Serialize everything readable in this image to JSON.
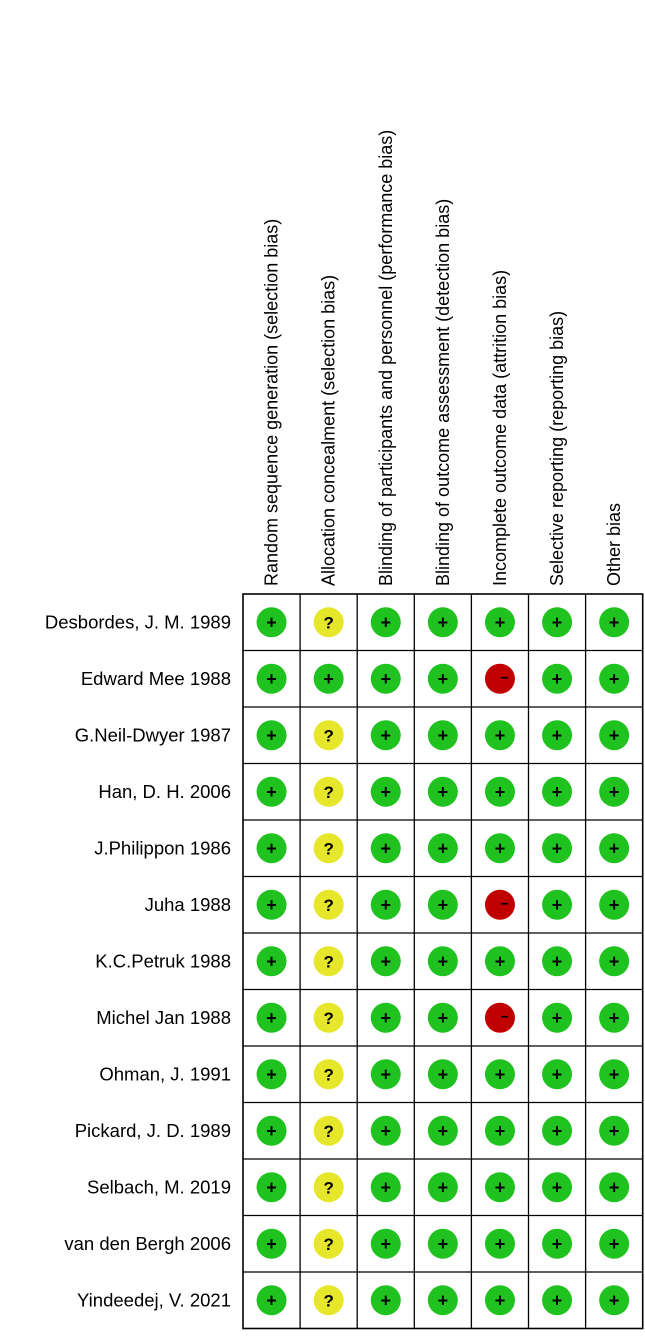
{
  "columns": [
    "Random sequence generation (selection bias)",
    "Allocation concealment (selection bias)",
    "Blinding of participants and personnel (performance bias)",
    "Blinding of outcome assessment (detection bias)",
    "Incomplete outcome data (attrition bias)",
    "Selective reporting (reporting bias)",
    "Other bias"
  ],
  "studies": [
    {
      "name": "Desbordes, J. M. 1989",
      "ratings": [
        "low",
        "unclear",
        "low",
        "low",
        "low",
        "low",
        "low"
      ]
    },
    {
      "name": "Edward Mee 1988",
      "ratings": [
        "low",
        "low",
        "low",
        "low",
        "high",
        "low",
        "low"
      ]
    },
    {
      "name": "G.Neil-Dwyer 1987",
      "ratings": [
        "low",
        "unclear",
        "low",
        "low",
        "low",
        "low",
        "low"
      ]
    },
    {
      "name": "Han, D. H. 2006",
      "ratings": [
        "low",
        "unclear",
        "low",
        "low",
        "low",
        "low",
        "low"
      ]
    },
    {
      "name": "J.Philippon 1986",
      "ratings": [
        "low",
        "unclear",
        "low",
        "low",
        "low",
        "low",
        "low"
      ]
    },
    {
      "name": "Juha 1988",
      "ratings": [
        "low",
        "unclear",
        "low",
        "low",
        "high",
        "low",
        "low"
      ]
    },
    {
      "name": "K.C.Petruk 1988",
      "ratings": [
        "low",
        "unclear",
        "low",
        "low",
        "low",
        "low",
        "low"
      ]
    },
    {
      "name": "Michel Jan 1988",
      "ratings": [
        "low",
        "unclear",
        "low",
        "low",
        "high",
        "low",
        "low"
      ]
    },
    {
      "name": "Ohman, J. 1991",
      "ratings": [
        "low",
        "unclear",
        "low",
        "low",
        "low",
        "low",
        "low"
      ]
    },
    {
      "name": "Pickard, J. D. 1989",
      "ratings": [
        "low",
        "unclear",
        "low",
        "low",
        "low",
        "low",
        "low"
      ]
    },
    {
      "name": "Selbach, M. 2019",
      "ratings": [
        "low",
        "unclear",
        "low",
        "low",
        "low",
        "low",
        "low"
      ]
    },
    {
      "name": "van den Bergh 2006",
      "ratings": [
        "low",
        "unclear",
        "low",
        "low",
        "low",
        "low",
        "low"
      ]
    },
    {
      "name": "Yindeedej, V. 2021",
      "ratings": [
        "low",
        "unclear",
        "low",
        "low",
        "low",
        "low",
        "low"
      ]
    }
  ],
  "symbols": {
    "low": {
      "glyph": "+",
      "color": "#1fc21f",
      "icon": "plus-icon"
    },
    "unclear": {
      "glyph": "?",
      "color": "#e6e62a",
      "icon": "question-icon"
    },
    "high": {
      "glyph": "–",
      "color": "#c00000",
      "icon": "minus-icon"
    }
  }
}
